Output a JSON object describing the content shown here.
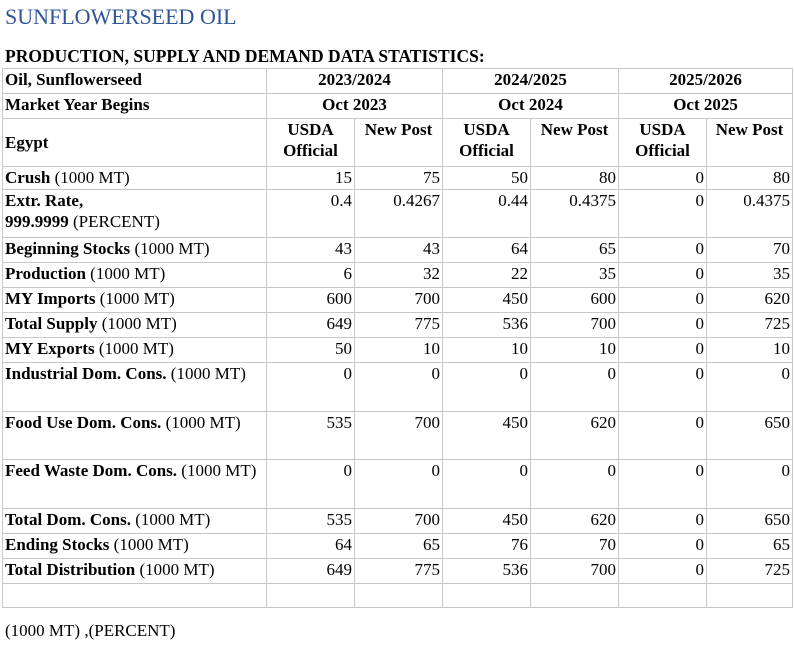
{
  "title": "SUNFLOWERSEED OIL",
  "subtitle": "PRODUCTION, SUPPLY AND DEMAND DATA STATISTICS:",
  "header": {
    "commodity": "Oil, Sunflowerseed",
    "market_year_begins": "Market Year Begins",
    "country": "Egypt",
    "years": [
      {
        "label": "2023/2024",
        "begins": "Oct 2023"
      },
      {
        "label": "2024/2025",
        "begins": "Oct 2024"
      },
      {
        "label": "2025/2026",
        "begins": "Oct 2025"
      }
    ],
    "usda_official": "USDA Official",
    "usda_line1": "USDA",
    "usda_line2": "Official",
    "new_post": "New Post"
  },
  "rows": [
    {
      "label": "Crush",
      "unit": " (1000 MT)",
      "values": [
        "15",
        "75",
        "50",
        "80",
        "0",
        "80"
      ]
    },
    {
      "label": "Extr. Rate, 999.9999",
      "label_line1": "Extr. Rate,",
      "label_line2": "999.9999",
      "unit": " (PERCENT)",
      "values": [
        "0.4",
        "0.4267",
        "0.44",
        "0.4375",
        "0",
        "0.4375"
      ]
    },
    {
      "label": "Beginning Stocks",
      "unit": " (1000 MT)",
      "values": [
        "43",
        "43",
        "64",
        "65",
        "0",
        "70"
      ]
    },
    {
      "label": "Production",
      "unit": " (1000 MT)",
      "values": [
        "6",
        "32",
        "22",
        "35",
        "0",
        "35"
      ]
    },
    {
      "label": "MY Imports",
      "unit": " (1000 MT)",
      "values": [
        "600",
        "700",
        "450",
        "600",
        "0",
        "620"
      ]
    },
    {
      "label": "Total Supply",
      "unit": " (1000 MT)",
      "values": [
        "649",
        "775",
        "536",
        "700",
        "0",
        "725"
      ]
    },
    {
      "label": "MY Exports",
      "unit": " (1000 MT)",
      "values": [
        "50",
        "10",
        "10",
        "10",
        "0",
        "10"
      ]
    },
    {
      "label": "Industrial Dom. Cons.",
      "unit": " (1000 MT)",
      "values": [
        "0",
        "0",
        "0",
        "0",
        "0",
        "0"
      ]
    },
    {
      "label": "Food Use Dom. Cons.",
      "unit": " (1000 MT)",
      "values": [
        "535",
        "700",
        "450",
        "620",
        "0",
        "650"
      ]
    },
    {
      "label": "Feed Waste Dom. Cons.",
      "unit": " (1000 MT)",
      "values": [
        "0",
        "0",
        "0",
        "0",
        "0",
        "0"
      ]
    },
    {
      "label": "Total Dom. Cons.",
      "unit": " (1000 MT)",
      "values": [
        "535",
        "700",
        "450",
        "620",
        "0",
        "650"
      ]
    },
    {
      "label": "Ending Stocks",
      "unit": " (1000 MT)",
      "values": [
        "64",
        "65",
        "76",
        "70",
        "0",
        "65"
      ]
    },
    {
      "label": "Total Distribution",
      "unit": " (1000 MT)",
      "values": [
        "649",
        "775",
        "536",
        "700",
        "0",
        "725"
      ]
    }
  ],
  "footnote": "(1000 MT) ,(PERCENT)"
}
